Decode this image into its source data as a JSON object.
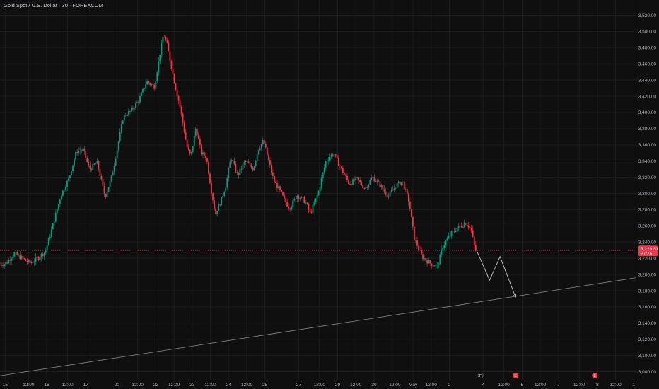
{
  "symbol_title": "Gold Spot / U.S. Dollar · 30 · FOREXCOM",
  "current_price": {
    "label": "3,229.51",
    "countdown": "27:26",
    "color": "#f23645"
  },
  "colors": {
    "up": "#089981",
    "down": "#f23645",
    "grid": "#1c1c1c",
    "drawing": "#c8c8c8",
    "background": "#0f0f0f"
  },
  "chart_data": {
    "type": "candlestick",
    "title": "Gold Spot / U.S. Dollar · 30 · FOREXCOM",
    "ylim": [
      3070,
      3530
    ],
    "y_ticks": [
      3520,
      3500,
      3480,
      3460,
      3440,
      3420,
      3400,
      3380,
      3360,
      3340,
      3320,
      3300,
      3280,
      3260,
      3240,
      3220,
      3200,
      3180,
      3160,
      3140,
      3120,
      3100,
      3080
    ],
    "y_tick_labels": [
      "3,520.00",
      "3,500.00",
      "3,480.00",
      "3,460.00",
      "3,440.00",
      "3,420.00",
      "3,400.00",
      "3,380.00",
      "3,360.00",
      "3,340.00",
      "3,320.00",
      "3,300.00",
      "3,280.00",
      "3,260.00",
      "3,240.00",
      "3,220.00",
      "3,200.00",
      "3,180.00",
      "3,160.00",
      "3,140.00",
      "3,120.00",
      "3,100.00",
      "3,080.00"
    ],
    "x_range": [
      0,
      24.5
    ],
    "x_ticks": [
      {
        "t": 0.2,
        "label": "15"
      },
      {
        "t": 1.1,
        "label": "12:00"
      },
      {
        "t": 1.8,
        "label": "16"
      },
      {
        "t": 2.6,
        "label": "12:00"
      },
      {
        "t": 3.3,
        "label": "17"
      },
      {
        "t": 4.5,
        "label": "20"
      },
      {
        "t": 5.3,
        "label": "12:00"
      },
      {
        "t": 6.0,
        "label": "22"
      },
      {
        "t": 6.7,
        "label": "12:00"
      },
      {
        "t": 7.4,
        "label": "23"
      },
      {
        "t": 8.1,
        "label": "12:00"
      },
      {
        "t": 8.8,
        "label": "24"
      },
      {
        "t": 9.5,
        "label": "12:00"
      },
      {
        "t": 10.2,
        "label": "25"
      },
      {
        "t": 11.5,
        "label": "27"
      },
      {
        "t": 12.3,
        "label": "12:00"
      },
      {
        "t": 13.0,
        "label": "29"
      },
      {
        "t": 13.7,
        "label": "12:00"
      },
      {
        "t": 14.4,
        "label": "30"
      },
      {
        "t": 15.2,
        "label": "12:00"
      },
      {
        "t": 15.9,
        "label": "May"
      },
      {
        "t": 16.6,
        "label": "12:00"
      },
      {
        "t": 17.3,
        "label": "2"
      },
      {
        "t": 18.6,
        "label": "4"
      },
      {
        "t": 19.4,
        "label": "12:00"
      },
      {
        "t": 20.1,
        "label": "6"
      },
      {
        "t": 20.8,
        "label": "12:00"
      },
      {
        "t": 21.5,
        "label": "7"
      },
      {
        "t": 22.3,
        "label": "12:00"
      },
      {
        "t": 23.0,
        "label": "8"
      },
      {
        "t": 23.7,
        "label": "12:00"
      },
      {
        "t": 24.4,
        "label": "1"
      }
    ],
    "price_path": [
      [
        0.0,
        3212
      ],
      [
        0.3,
        3214
      ],
      [
        0.6,
        3226
      ],
      [
        0.9,
        3220
      ],
      [
        1.2,
        3214
      ],
      [
        1.5,
        3220
      ],
      [
        1.8,
        3228
      ],
      [
        2.1,
        3262
      ],
      [
        2.4,
        3298
      ],
      [
        2.7,
        3318
      ],
      [
        3.0,
        3352
      ],
      [
        3.25,
        3354
      ],
      [
        3.5,
        3330
      ],
      [
        3.8,
        3338
      ],
      [
        4.1,
        3295
      ],
      [
        4.35,
        3320
      ],
      [
        4.55,
        3352
      ],
      [
        4.8,
        3395
      ],
      [
        5.1,
        3402
      ],
      [
        5.4,
        3415
      ],
      [
        5.7,
        3438
      ],
      [
        6.0,
        3432
      ],
      [
        6.2,
        3470
      ],
      [
        6.35,
        3497
      ],
      [
        6.5,
        3482
      ],
      [
        6.75,
        3440
      ],
      [
        7.0,
        3405
      ],
      [
        7.25,
        3358
      ],
      [
        7.4,
        3345
      ],
      [
        7.6,
        3382
      ],
      [
        7.8,
        3350
      ],
      [
        8.0,
        3345
      ],
      [
        8.2,
        3302
      ],
      [
        8.35,
        3275
      ],
      [
        8.55,
        3290
      ],
      [
        8.75,
        3310
      ],
      [
        8.95,
        3345
      ],
      [
        9.2,
        3322
      ],
      [
        9.5,
        3340
      ],
      [
        9.8,
        3330
      ],
      [
        10.0,
        3355
      ],
      [
        10.2,
        3365
      ],
      [
        10.4,
        3340
      ],
      [
        10.6,
        3315
      ],
      [
        10.8,
        3305
      ],
      [
        11.0,
        3292
      ],
      [
        11.2,
        3282
      ],
      [
        11.5,
        3298
      ],
      [
        11.8,
        3290
      ],
      [
        12.0,
        3275
      ],
      [
        12.3,
        3300
      ],
      [
        12.6,
        3340
      ],
      [
        12.9,
        3350
      ],
      [
        13.2,
        3330
      ],
      [
        13.5,
        3312
      ],
      [
        13.8,
        3318
      ],
      [
        14.1,
        3306
      ],
      [
        14.4,
        3320
      ],
      [
        14.7,
        3310
      ],
      [
        15.0,
        3296
      ],
      [
        15.3,
        3310
      ],
      [
        15.55,
        3315
      ],
      [
        15.8,
        3290
      ],
      [
        16.0,
        3245
      ],
      [
        16.3,
        3222
      ],
      [
        16.6,
        3214
      ],
      [
        16.9,
        3210
      ],
      [
        17.1,
        3235
      ],
      [
        17.4,
        3250
      ],
      [
        17.7,
        3258
      ],
      [
        18.0,
        3264
      ],
      [
        18.2,
        3255
      ],
      [
        18.35,
        3229.51
      ]
    ],
    "projection": [
      [
        18.35,
        3229.51
      ],
      [
        18.85,
        3193
      ],
      [
        19.25,
        3222
      ],
      [
        19.85,
        3172
      ]
    ],
    "trendline": [
      [
        0,
        3075
      ],
      [
        24.5,
        3196
      ]
    ],
    "current_price": 3229.51,
    "event_markers": [
      {
        "t": 18.5,
        "label": "F",
        "kind": "economic",
        "color": "#5d606b"
      },
      {
        "t": 19.85,
        "label": "E",
        "kind": "earnings",
        "color": "#f23645"
      },
      {
        "t": 22.9,
        "label": "E",
        "kind": "earnings",
        "color": "#f23645"
      }
    ]
  }
}
